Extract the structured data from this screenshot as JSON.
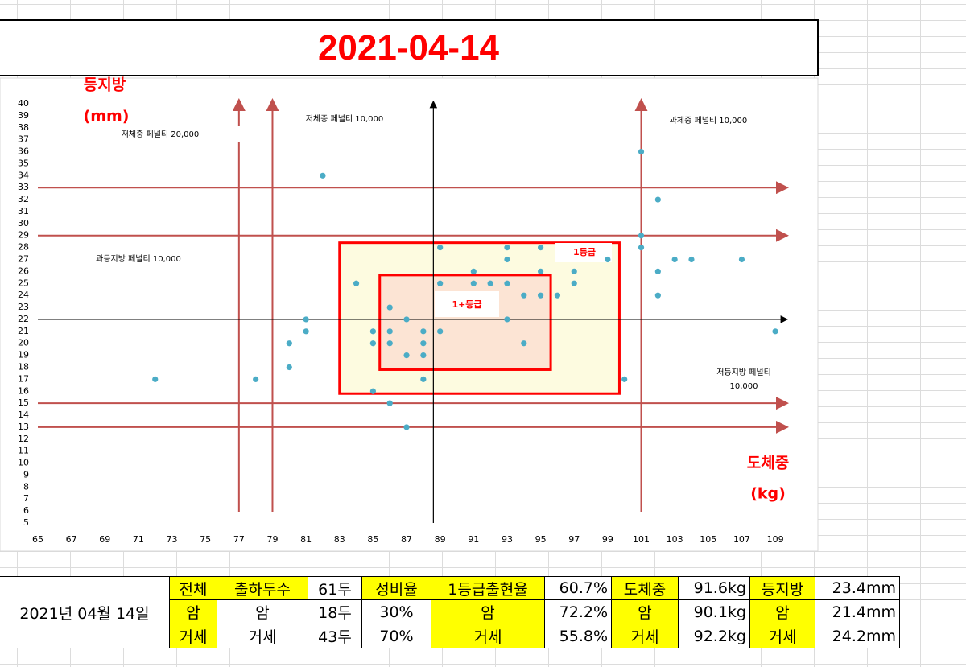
{
  "chart_data": {
    "type": "scatter",
    "title": "2021-04-14",
    "ylabel": "등지방",
    "yunit": "(mm)",
    "xlabel": "도체중",
    "xunit": "(kg)",
    "x": [
      72,
      78,
      80,
      80,
      81,
      81,
      82,
      84,
      85,
      85,
      85,
      86,
      86,
      86,
      86,
      87,
      87,
      87,
      88,
      88,
      88,
      88,
      89,
      89,
      89,
      91,
      91,
      92,
      93,
      93,
      93,
      93,
      94,
      94,
      95,
      95,
      95,
      96,
      97,
      97,
      99,
      100,
      101,
      101,
      101,
      102,
      102,
      102,
      103,
      104,
      107,
      109
    ],
    "values": [
      17,
      17,
      20,
      18,
      22,
      21,
      34,
      25,
      21,
      20,
      16,
      23,
      21,
      20,
      15,
      22,
      19,
      13,
      21,
      20,
      19,
      17,
      28,
      25,
      21,
      26,
      25,
      25,
      28,
      27,
      25,
      22,
      24,
      20,
      28,
      26,
      24,
      24,
      26,
      25,
      27,
      17,
      36,
      29,
      28,
      32,
      26,
      24,
      27,
      27,
      27,
      21
    ],
    "color": "#4bacc6",
    "xlim": [
      65,
      110
    ],
    "ylim": [
      5,
      40
    ],
    "xticks": [
      65,
      67,
      69,
      71,
      73,
      75,
      77,
      79,
      81,
      83,
      85,
      87,
      89,
      91,
      93,
      95,
      97,
      99,
      101,
      103,
      105,
      107,
      109
    ],
    "yticks": [
      5,
      6,
      7,
      8,
      9,
      10,
      11,
      12,
      13,
      14,
      15,
      16,
      17,
      18,
      19,
      20,
      21,
      22,
      23,
      24,
      25,
      26,
      27,
      28,
      29,
      30,
      31,
      32,
      33,
      34,
      35,
      36,
      37,
      38,
      39,
      40
    ],
    "vlines": [
      77,
      79,
      101
    ],
    "hlines": [
      33,
      29,
      15,
      13
    ],
    "line_color": "#c0504d",
    "axis_cross": {
      "x": 88.6,
      "y": 22
    },
    "regions": [
      {
        "name": "1등급",
        "x": [
          83,
          99.7
        ],
        "y": [
          15.8,
          28.4
        ],
        "fill": "#fdfbe0"
      },
      {
        "name": "1+등급",
        "x": [
          85.4,
          95.6
        ],
        "y": [
          17.8,
          25.7
        ],
        "fill": "#fce4d4"
      }
    ],
    "annotations": [
      "저체중 페널티 20,000",
      "저체중 페널티 10,000",
      "과체중 페널티 10,000",
      "과등지방 페널티 10,000",
      "저등지방 페널티",
      "10,000"
    ]
  },
  "summary_table": {
    "date": "2021년 04월 14일",
    "rows": [
      [
        "전체",
        "출하두수",
        "61두",
        "성비율",
        "1등급출현율",
        "60.7%",
        "도체중",
        "91.6kg",
        "등지방",
        "23.4mm"
      ],
      [
        "암",
        "암",
        "18두",
        "30%",
        "암",
        "72.2%",
        "암",
        "90.1kg",
        "암",
        "21.4mm"
      ],
      [
        "거세",
        "거세",
        "43두",
        "70%",
        "거세",
        "55.8%",
        "거세",
        "92.2kg",
        "거세",
        "24.2mm"
      ]
    ]
  }
}
